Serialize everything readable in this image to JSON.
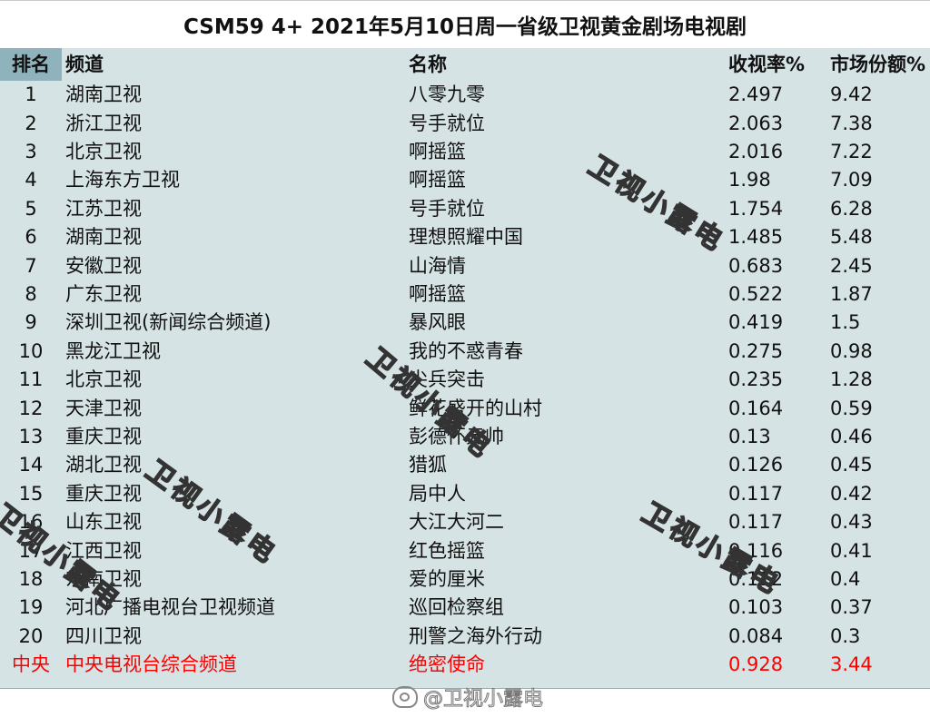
{
  "title": "CSM59 4+ 2021年5月10日周一省级卫视黄金剧场电视剧",
  "headers": {
    "rank": "排名",
    "channel": "频道",
    "name": "名称",
    "rating": "收视率%",
    "share": "市场份额%"
  },
  "rows": [
    {
      "rank": "1",
      "channel": "湖南卫视",
      "name": "八零九零",
      "rating": "2.497",
      "share": "9.42"
    },
    {
      "rank": "2",
      "channel": "浙江卫视",
      "name": "号手就位",
      "rating": "2.063",
      "share": "7.38"
    },
    {
      "rank": "3",
      "channel": "北京卫视",
      "name": "啊摇篮",
      "rating": "2.016",
      "share": "7.22"
    },
    {
      "rank": "4",
      "channel": "上海东方卫视",
      "name": "啊摇篮",
      "rating": "1.98",
      "share": "7.09"
    },
    {
      "rank": "5",
      "channel": "江苏卫视",
      "name": "号手就位",
      "rating": "1.754",
      "share": "6.28"
    },
    {
      "rank": "6",
      "channel": "湖南卫视",
      "name": "理想照耀中国",
      "rating": "1.485",
      "share": "5.48"
    },
    {
      "rank": "7",
      "channel": "安徽卫视",
      "name": "山海情",
      "rating": "0.683",
      "share": "2.45"
    },
    {
      "rank": "8",
      "channel": "广东卫视",
      "name": "啊摇篮",
      "rating": "0.522",
      "share": "1.87"
    },
    {
      "rank": "9",
      "channel": "深圳卫视(新闻综合频道)",
      "name": "暴风眼",
      "rating": "0.419",
      "share": "1.5"
    },
    {
      "rank": "10",
      "channel": "黑龙江卫视",
      "name": "我的不惑青春",
      "rating": "0.275",
      "share": "0.98"
    },
    {
      "rank": "11",
      "channel": "北京卫视",
      "name": "尖兵突击",
      "rating": "0.235",
      "share": "1.28"
    },
    {
      "rank": "12",
      "channel": "天津卫视",
      "name": "鲜花盛开的山村",
      "rating": "0.164",
      "share": "0.59"
    },
    {
      "rank": "13",
      "channel": "重庆卫视",
      "name": "彭德怀元帅",
      "rating": "0.13",
      "share": "0.46"
    },
    {
      "rank": "14",
      "channel": "湖北卫视",
      "name": "猎狐",
      "rating": "0.126",
      "share": "0.45"
    },
    {
      "rank": "15",
      "channel": "重庆卫视",
      "name": "局中人",
      "rating": "0.117",
      "share": "0.42"
    },
    {
      "rank": "16",
      "channel": "山东卫视",
      "name": "大江大河二",
      "rating": "0.117",
      "share": "0.43"
    },
    {
      "rank": "17",
      "channel": "江西卫视",
      "name": "红色摇篮",
      "rating": "0.116",
      "share": "0.41"
    },
    {
      "rank": "18",
      "channel": "东南卫视",
      "name": "爱的厘米",
      "rating": "0.112",
      "share": "0.4"
    },
    {
      "rank": "19",
      "channel": "河北广播电视台卫视频道",
      "name": "巡回检察组",
      "rating": "0.103",
      "share": "0.37"
    },
    {
      "rank": "20",
      "channel": "四川卫视",
      "name": "刑警之海外行动",
      "rating": "0.084",
      "share": "0.3"
    }
  ],
  "cctv_row": {
    "rank": "中央",
    "channel": "中央电视台综合频道",
    "name": "绝密使命",
    "rating": "0.928",
    "share": "3.44"
  },
  "watermark_text": "卫视小露电",
  "weibo_watermark": "@卫视小露电",
  "colors": {
    "table_bg": "#d6e3e5",
    "rank_header_bg": "#8fb3bd",
    "cctv_text": "#ff0000"
  }
}
